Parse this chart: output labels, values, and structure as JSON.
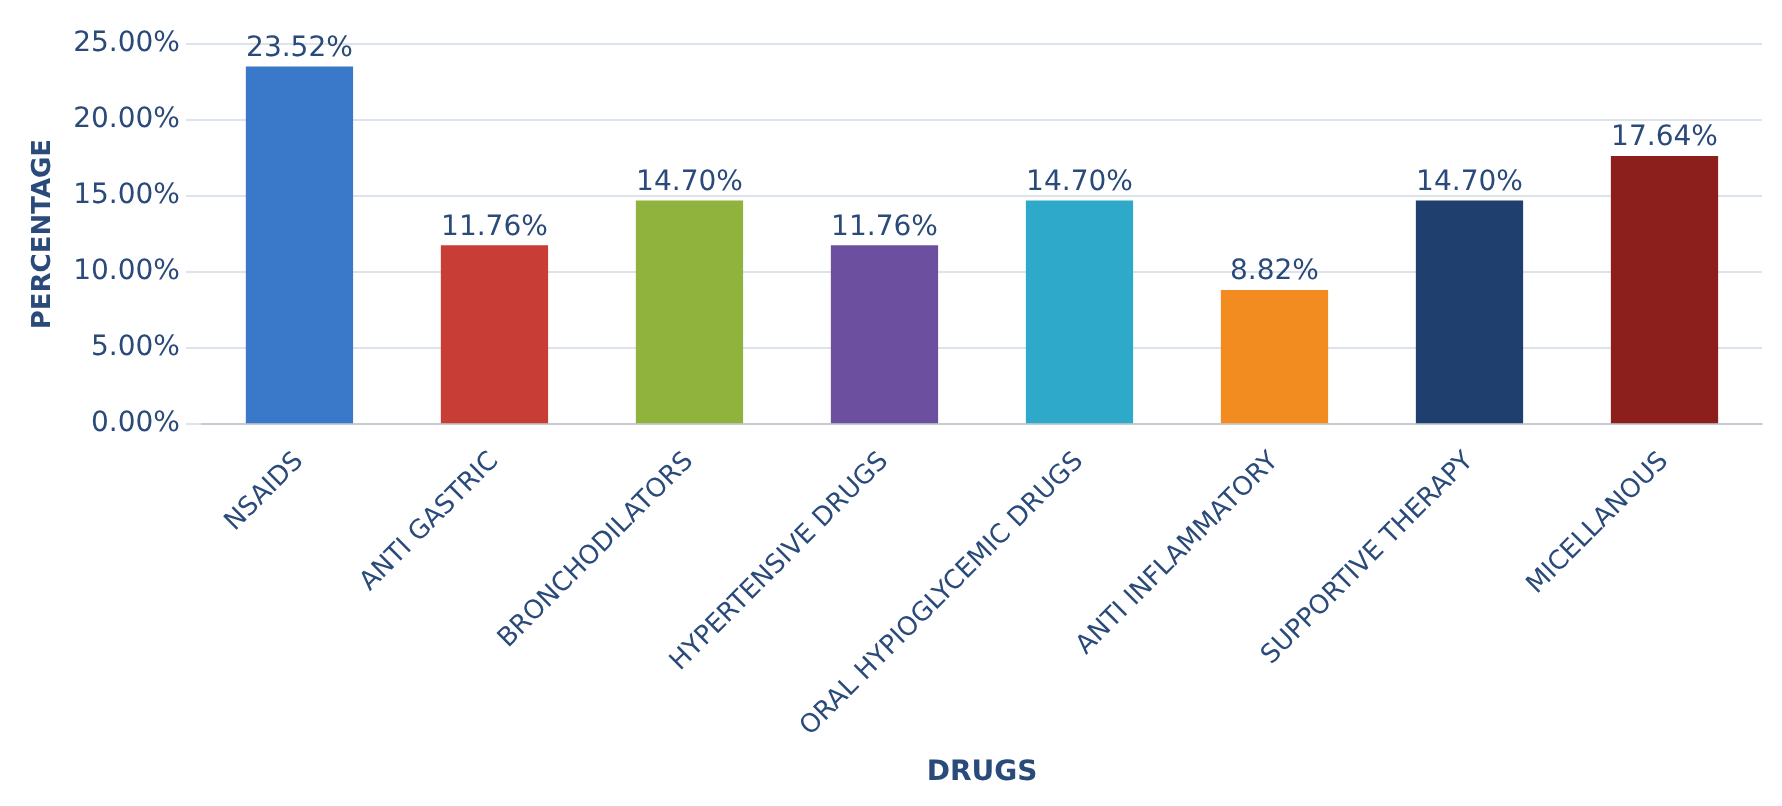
{
  "chart_data": {
    "type": "bar",
    "xlabel": "DRUGS",
    "ylabel": "PERCENTAGE",
    "categories": [
      "NSAIDS",
      "ANTI GASTRIC",
      "BRONCHODILATORS",
      "HYPERTENSIVE DRUGS",
      "ORAL HYPIOGLYCEMIC DRUGS",
      "ANTI INFLAMMATORY",
      "SUPPORTIVE THERAPY",
      "MICELLANOUS"
    ],
    "values": [
      23.52,
      11.76,
      14.7,
      11.76,
      14.7,
      8.82,
      14.7,
      17.64
    ],
    "value_labels": [
      "23.52%",
      "11.76%",
      "14.70%",
      "11.76%",
      "14.70%",
      "8.82%",
      "14.70%",
      "17.64%"
    ],
    "colors": [
      "#3a78c9",
      "#c93d37",
      "#8fb33c",
      "#6c4f9e",
      "#2ea9c9",
      "#f28b20",
      "#1f3f6e",
      "#8c1f1c"
    ],
    "ylim": [
      0,
      25
    ],
    "yticks": [
      {
        "value": 0,
        "label": "0.00%"
      },
      {
        "value": 5,
        "label": "5.00%"
      },
      {
        "value": 10,
        "label": "10.00%"
      },
      {
        "value": 15,
        "label": "15.00%"
      },
      {
        "value": 20,
        "label": "20.00%"
      },
      {
        "value": 25,
        "label": "25.00%"
      }
    ],
    "grid": "y",
    "legend": false
  }
}
